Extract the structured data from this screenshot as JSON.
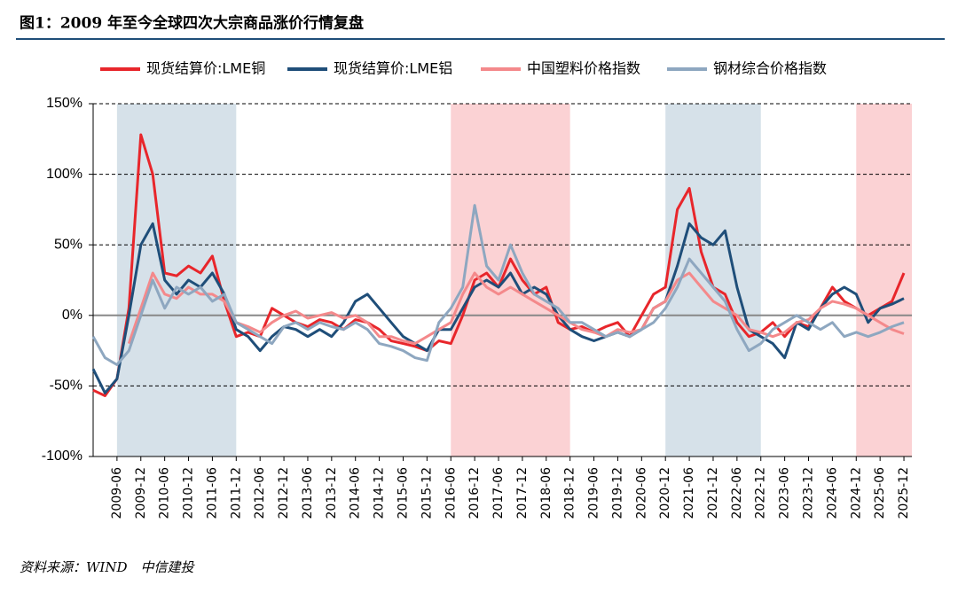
{
  "chart_data": {
    "type": "line",
    "title": "图1：2009 年至今全球四次大宗商品涨价行情复盘",
    "source": "资料来源：WIND　中信建投",
    "x": [
      "2008-12",
      "2009-03",
      "2009-06",
      "2009-09",
      "2009-12",
      "2010-03",
      "2010-06",
      "2010-09",
      "2010-12",
      "2011-03",
      "2011-06",
      "2011-09",
      "2011-12",
      "2012-03",
      "2012-06",
      "2012-09",
      "2012-12",
      "2013-03",
      "2013-06",
      "2013-09",
      "2013-12",
      "2014-03",
      "2014-06",
      "2014-09",
      "2014-12",
      "2015-03",
      "2015-06",
      "2015-09",
      "2015-12",
      "2016-03",
      "2016-06",
      "2016-09",
      "2016-12",
      "2017-03",
      "2017-06",
      "2017-09",
      "2017-12",
      "2018-03",
      "2018-06",
      "2018-09",
      "2018-12",
      "2019-03",
      "2019-06",
      "2019-09",
      "2019-12",
      "2020-03",
      "2020-06",
      "2020-09",
      "2020-12",
      "2021-03",
      "2021-06",
      "2021-09",
      "2021-12",
      "2022-03",
      "2022-06",
      "2022-09",
      "2022-12",
      "2023-03",
      "2023-06",
      "2023-09",
      "2023-12",
      "2024-03",
      "2024-06",
      "2024-09",
      "2024-12",
      "2025-03",
      "2025-06",
      "2025-09",
      "2025-12"
    ],
    "series": [
      {
        "name": "现货结算价:LME铜",
        "color": "#e8262b",
        "values": [
          -53,
          -57,
          -45,
          5,
          128,
          100,
          30,
          28,
          35,
          30,
          42,
          10,
          -15,
          -12,
          -15,
          5,
          0,
          -5,
          -8,
          -3,
          -5,
          -10,
          -3,
          -5,
          -10,
          -18,
          -20,
          -22,
          -25,
          -18,
          -20,
          0,
          25,
          30,
          20,
          40,
          25,
          15,
          20,
          -5,
          -10,
          -8,
          -12,
          -8,
          -5,
          -15,
          0,
          15,
          20,
          75,
          90,
          45,
          20,
          15,
          -5,
          -15,
          -12,
          -5,
          -15,
          -5,
          -8,
          5,
          20,
          10,
          5,
          0,
          5,
          10,
          30
        ]
      },
      {
        "name": "现货结算价:LME铝",
        "color": "#1f4e79",
        "values": [
          -38,
          -55,
          -45,
          0,
          50,
          65,
          25,
          15,
          25,
          20,
          30,
          15,
          -10,
          -15,
          -25,
          -15,
          -8,
          -10,
          -15,
          -10,
          -15,
          -5,
          10,
          15,
          5,
          -5,
          -15,
          -20,
          -25,
          -10,
          -10,
          5,
          20,
          25,
          20,
          30,
          15,
          20,
          15,
          0,
          -10,
          -15,
          -18,
          -15,
          -12,
          -15,
          -10,
          5,
          10,
          35,
          65,
          55,
          50,
          60,
          20,
          -10,
          -15,
          -20,
          -30,
          -5,
          -10,
          5,
          15,
          20,
          15,
          -5,
          5,
          8,
          12
        ]
      },
      {
        "name": "中国塑料价格指数",
        "color": "#f4898b",
        "values": [
          null,
          null,
          null,
          -20,
          5,
          30,
          15,
          12,
          20,
          15,
          15,
          10,
          -5,
          -8,
          -12,
          -5,
          0,
          3,
          -2,
          0,
          2,
          -2,
          0,
          -5,
          -15,
          -15,
          -18,
          -20,
          -15,
          -10,
          -5,
          15,
          30,
          20,
          15,
          20,
          15,
          10,
          5,
          0,
          -5,
          -10,
          -12,
          -15,
          -10,
          -12,
          -10,
          5,
          10,
          25,
          30,
          20,
          10,
          5,
          0,
          -10,
          -12,
          -15,
          -12,
          -5,
          -3,
          5,
          10,
          8,
          5,
          0,
          -5,
          -10,
          -13
        ]
      },
      {
        "name": "钢材综合价格指数",
        "color": "#8ea7c0",
        "values": [
          -15,
          -30,
          -35,
          -25,
          0,
          25,
          5,
          20,
          15,
          20,
          10,
          15,
          -5,
          -10,
          -15,
          -20,
          -8,
          -5,
          -10,
          -5,
          -8,
          -10,
          -5,
          -10,
          -20,
          -22,
          -25,
          -30,
          -32,
          -5,
          5,
          20,
          78,
          35,
          25,
          50,
          30,
          15,
          10,
          5,
          -5,
          -5,
          -10,
          -15,
          -12,
          -15,
          -10,
          -5,
          5,
          20,
          40,
          30,
          20,
          10,
          -10,
          -25,
          -20,
          -10,
          -5,
          0,
          -5,
          -10,
          -5,
          -15,
          -12,
          -15,
          -12,
          -8,
          -5
        ]
      }
    ],
    "shaded": [
      {
        "start": "2009-06",
        "end": "2011-12",
        "color": "#d6e1e9"
      },
      {
        "start": "2016-06",
        "end": "2018-12",
        "color": "#fbd2d4"
      },
      {
        "start": "2020-12",
        "end": "2022-12",
        "color": "#d6e1e9"
      },
      {
        "start": "2024-12",
        "end": "2026-02",
        "color": "#fbd2d4"
      }
    ],
    "xlim": [
      "2008-12",
      "2026-02"
    ],
    "xticks": [
      "2009-06",
      "2009-12",
      "2010-06",
      "2010-12",
      "2011-06",
      "2011-12",
      "2012-06",
      "2012-12",
      "2013-06",
      "2013-12",
      "2014-06",
      "2014-12",
      "2015-06",
      "2015-12",
      "2016-06",
      "2016-12",
      "2017-06",
      "2017-12",
      "2018-06",
      "2018-12",
      "2019-06",
      "2019-12",
      "2020-06",
      "2020-12",
      "2021-06",
      "2021-12",
      "2022-06",
      "2022-12",
      "2023-06",
      "2023-12",
      "2024-06",
      "2024-12",
      "2025-06",
      "2025-12"
    ],
    "ylim": [
      -100,
      150
    ],
    "yticks": [
      {
        "value": -100,
        "label": "-100%"
      },
      {
        "value": -50,
        "label": "-50%"
      },
      {
        "value": 0,
        "label": "0%"
      },
      {
        "value": 50,
        "label": "50%"
      },
      {
        "value": 100,
        "label": "100%"
      },
      {
        "value": 150,
        "label": "150%"
      }
    ],
    "grid": true
  }
}
